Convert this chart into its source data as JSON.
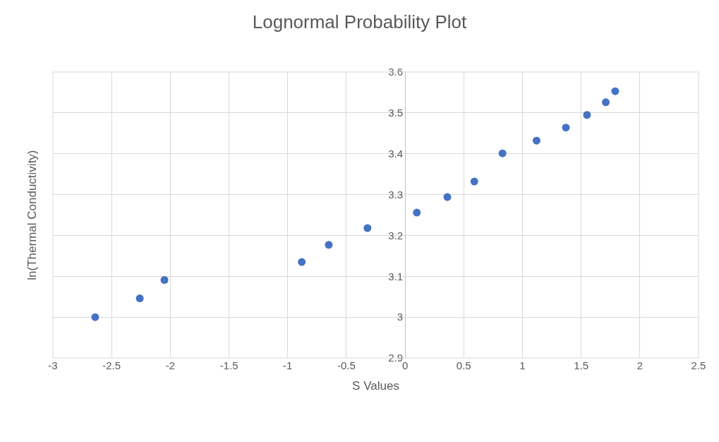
{
  "chart_data": {
    "type": "scatter",
    "title": "Lognormal Probability Plot",
    "xlabel": "S Values",
    "ylabel": "ln(Thermal Conductivity)",
    "x": [
      -2.64,
      -2.26,
      -2.05,
      -0.88,
      -0.65,
      -0.32,
      0.1,
      0.36,
      0.59,
      0.83,
      1.12,
      1.37,
      1.55,
      1.71,
      1.79
    ],
    "values": [
      3.0,
      3.046,
      3.091,
      3.135,
      3.177,
      3.218,
      3.256,
      3.294,
      3.332,
      3.401,
      3.432,
      3.464,
      3.495,
      3.526,
      3.553
    ],
    "color": "#4472c4",
    "marker": "circle",
    "grid": true,
    "xlim": [
      -3,
      2.5
    ],
    "xticks": [
      -3,
      -2.5,
      -2,
      -1.5,
      -1,
      -0.5,
      0,
      0.5,
      1,
      1.5,
      2,
      2.5
    ],
    "ylim": [
      2.9,
      3.6
    ],
    "yticks": [
      2.9,
      3,
      3.1,
      3.2,
      3.3,
      3.4,
      3.5,
      3.6
    ]
  }
}
